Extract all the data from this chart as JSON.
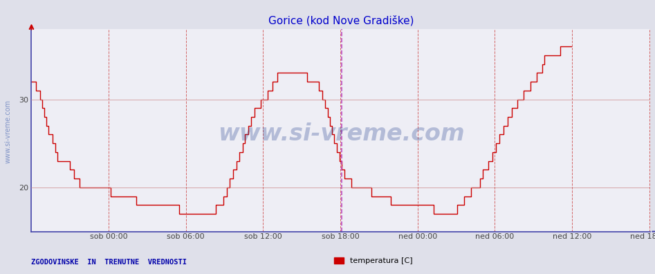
{
  "title": "Gorice (kod Nove Gradiške)",
  "background_color": "#dfe0ea",
  "plot_bg_color": "#eeeef5",
  "line_color": "#cc0000",
  "line_width": 1.0,
  "ylim": [
    15,
    38
  ],
  "yticks": [
    20,
    30
  ],
  "x_tick_labels": [
    "sob 00:00",
    "sob 06:00",
    "sob 12:00",
    "sob 18:00",
    "ned 00:00",
    "ned 06:00",
    "ned 12:00",
    "ned 18:00"
  ],
  "x_tick_positions": [
    72,
    144,
    216,
    288,
    360,
    432,
    504,
    576
  ],
  "total_points": 577,
  "highlight_x": 289,
  "watermark": "www.si-vreme.com",
  "watermark_color": "#1a3a8a",
  "left_label": "ZGODOVINSKE  IN  TRENUTNE  VREDNOSTI",
  "legend_label": "temperatura [C]",
  "legend_color": "#cc0000",
  "title_color": "#0000cc",
  "label_color": "#0000aa",
  "temperature_data": [
    32,
    32,
    32,
    32,
    31,
    31,
    31,
    31,
    30,
    30,
    29,
    29,
    28,
    28,
    27,
    27,
    26,
    26,
    26,
    26,
    25,
    25,
    24,
    24,
    23,
    23,
    23,
    23,
    23,
    23,
    23,
    23,
    23,
    23,
    23,
    23,
    22,
    22,
    22,
    22,
    21,
    21,
    21,
    21,
    21,
    20,
    20,
    20,
    20,
    20,
    20,
    20,
    20,
    20,
    20,
    20,
    20,
    20,
    20,
    20,
    20,
    20,
    20,
    20,
    20,
    20,
    20,
    20,
    20,
    20,
    20,
    20,
    20,
    20,
    19,
    19,
    19,
    19,
    19,
    19,
    19,
    19,
    19,
    19,
    19,
    19,
    19,
    19,
    19,
    19,
    19,
    19,
    19,
    19,
    19,
    19,
    19,
    19,
    18,
    18,
    18,
    18,
    18,
    18,
    18,
    18,
    18,
    18,
    18,
    18,
    18,
    18,
    18,
    18,
    18,
    18,
    18,
    18,
    18,
    18,
    18,
    18,
    18,
    18,
    18,
    18,
    18,
    18,
    18,
    18,
    18,
    18,
    18,
    18,
    18,
    18,
    18,
    18,
    17,
    17,
    17,
    17,
    17,
    17,
    17,
    17,
    17,
    17,
    17,
    17,
    17,
    17,
    17,
    17,
    17,
    17,
    17,
    17,
    17,
    17,
    17,
    17,
    17,
    17,
    17,
    17,
    17,
    17,
    17,
    17,
    17,
    17,
    18,
    18,
    18,
    18,
    18,
    18,
    18,
    19,
    19,
    19,
    20,
    20,
    20,
    21,
    21,
    21,
    22,
    22,
    22,
    23,
    23,
    23,
    24,
    24,
    24,
    25,
    25,
    26,
    26,
    26,
    27,
    27,
    27,
    28,
    28,
    28,
    29,
    29,
    29,
    29,
    29,
    29,
    30,
    30,
    30,
    30,
    30,
    30,
    31,
    31,
    31,
    31,
    31,
    32,
    32,
    32,
    32,
    33,
    33,
    33,
    33,
    33,
    33,
    33,
    33,
    33,
    33,
    33,
    33,
    33,
    33,
    33,
    33,
    33,
    33,
    33,
    33,
    33,
    33,
    33,
    33,
    33,
    33,
    33,
    33,
    32,
    32,
    32,
    32,
    32,
    32,
    32,
    32,
    32,
    32,
    32,
    31,
    31,
    31,
    30,
    30,
    30,
    29,
    29,
    28,
    28,
    27,
    27,
    26,
    26,
    25,
    25,
    25,
    24,
    24,
    23,
    23,
    22,
    22,
    22,
    21,
    21,
    21,
    21,
    21,
    21,
    20,
    20,
    20,
    20,
    20,
    20,
    20,
    20,
    20,
    20,
    20,
    20,
    20,
    20,
    20,
    20,
    20,
    20,
    20,
    19,
    19,
    19,
    19,
    19,
    19,
    19,
    19,
    19,
    19,
    19,
    19,
    19,
    19,
    19,
    19,
    19,
    19,
    18,
    18,
    18,
    18,
    18,
    18,
    18,
    18,
    18,
    18,
    18,
    18,
    18,
    18,
    18,
    18,
    18,
    18,
    18,
    18,
    18,
    18,
    18,
    18,
    18,
    18,
    18,
    18,
    18,
    18,
    18,
    18,
    18,
    18,
    18,
    18,
    18,
    18,
    18,
    18,
    17,
    17,
    17,
    17,
    17,
    17,
    17,
    17,
    17,
    17,
    17,
    17,
    17,
    17,
    17,
    17,
    17,
    17,
    17,
    17,
    17,
    17,
    18,
    18,
    18,
    18,
    18,
    18,
    19,
    19,
    19,
    19,
    19,
    19,
    19,
    20,
    20,
    20,
    20,
    20,
    20,
    20,
    20,
    21,
    21,
    21,
    22,
    22,
    22,
    22,
    22,
    23,
    23,
    23,
    23,
    24,
    24,
    24,
    25,
    25,
    25,
    26,
    26,
    26,
    26,
    27,
    27,
    27,
    27,
    28,
    28,
    28,
    28,
    29,
    29,
    29,
    29,
    29,
    30,
    30,
    30,
    30,
    30,
    30,
    31,
    31,
    31,
    31,
    31,
    31,
    32,
    32,
    32,
    32,
    32,
    32,
    33,
    33,
    33,
    33,
    33,
    34,
    34,
    35,
    35,
    35,
    35,
    35,
    35,
    35,
    35,
    35,
    35,
    35,
    35,
    35,
    35,
    35,
    36,
    36,
    36,
    36,
    36,
    36,
    36,
    36,
    36,
    36,
    36
  ]
}
